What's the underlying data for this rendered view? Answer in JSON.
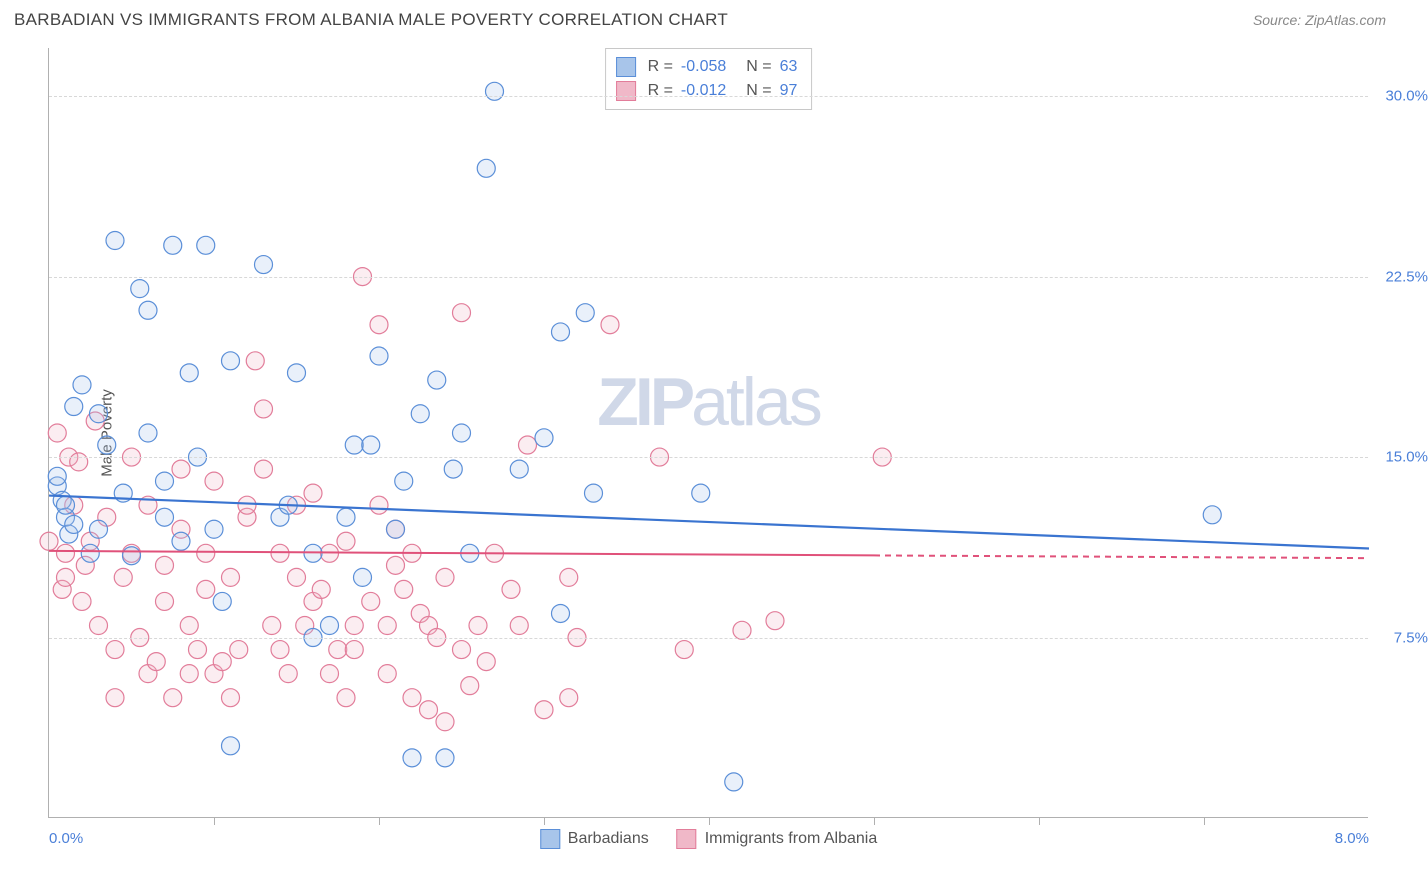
{
  "header": {
    "title": "BARBADIAN VS IMMIGRANTS FROM ALBANIA MALE POVERTY CORRELATION CHART",
    "source": "Source: ZipAtlas.com"
  },
  "watermark": {
    "zip": "ZIP",
    "atlas": "atlas"
  },
  "chart": {
    "type": "scatter",
    "ylabel": "Male Poverty",
    "xlim": [
      0,
      8.0
    ],
    "ylim": [
      0,
      32
    ],
    "yticks": [
      {
        "v": 7.5,
        "label": "7.5%"
      },
      {
        "v": 15.0,
        "label": "15.0%"
      },
      {
        "v": 22.5,
        "label": "22.5%"
      },
      {
        "v": 30.0,
        "label": "30.0%"
      }
    ],
    "xticks_minor": [
      1.0,
      2.0,
      3.0,
      4.0,
      5.0,
      6.0,
      7.0
    ],
    "xtick_labels": [
      {
        "v": 0.0,
        "label": "0.0%"
      },
      {
        "v": 8.0,
        "label": "8.0%"
      }
    ],
    "background_color": "#ffffff",
    "grid_color": "#d8d8d8",
    "axis_color": "#b0b0b0",
    "tick_label_color": "#4a7fd8",
    "marker_radius": 9,
    "marker_stroke_width": 1.2,
    "marker_fill_opacity": 0.25,
    "series": [
      {
        "name": "Barbadians",
        "color_stroke": "#5b8fd8",
        "color_fill": "#a8c5ea",
        "R": "-0.058",
        "N": "63",
        "regression": {
          "x1": 0,
          "y1": 13.4,
          "x2": 8.0,
          "y2": 11.2,
          "color": "#3a74d0",
          "width": 2.2,
          "dash_after_x": null
        },
        "points": [
          [
            0.05,
            13.8
          ],
          [
            0.05,
            14.2
          ],
          [
            0.08,
            13.2
          ],
          [
            0.1,
            12.5
          ],
          [
            0.1,
            13.0
          ],
          [
            0.12,
            11.8
          ],
          [
            0.15,
            17.1
          ],
          [
            0.15,
            12.2
          ],
          [
            0.2,
            18.0
          ],
          [
            0.25,
            11.0
          ],
          [
            0.3,
            16.8
          ],
          [
            0.3,
            12.0
          ],
          [
            0.35,
            15.5
          ],
          [
            0.4,
            24.0
          ],
          [
            0.45,
            13.5
          ],
          [
            0.5,
            10.9
          ],
          [
            0.55,
            22.0
          ],
          [
            0.6,
            21.1
          ],
          [
            0.6,
            16.0
          ],
          [
            0.7,
            14.0
          ],
          [
            0.7,
            12.5
          ],
          [
            0.75,
            23.8
          ],
          [
            0.8,
            11.5
          ],
          [
            0.85,
            18.5
          ],
          [
            0.9,
            15.0
          ],
          [
            0.95,
            23.8
          ],
          [
            1.0,
            12.0
          ],
          [
            1.05,
            9.0
          ],
          [
            1.1,
            19.0
          ],
          [
            1.1,
            3.0
          ],
          [
            1.3,
            23.0
          ],
          [
            1.4,
            12.5
          ],
          [
            1.45,
            13.0
          ],
          [
            1.5,
            18.5
          ],
          [
            1.6,
            11.0
          ],
          [
            1.6,
            7.5
          ],
          [
            1.7,
            8.0
          ],
          [
            1.8,
            12.5
          ],
          [
            1.85,
            15.5
          ],
          [
            1.9,
            10.0
          ],
          [
            1.95,
            15.5
          ],
          [
            2.0,
            19.2
          ],
          [
            2.1,
            12.0
          ],
          [
            2.15,
            14.0
          ],
          [
            2.2,
            2.5
          ],
          [
            2.25,
            16.8
          ],
          [
            2.35,
            18.2
          ],
          [
            2.4,
            2.5
          ],
          [
            2.45,
            14.5
          ],
          [
            2.5,
            16.0
          ],
          [
            2.55,
            11.0
          ],
          [
            2.65,
            27.0
          ],
          [
            2.7,
            30.2
          ],
          [
            2.85,
            14.5
          ],
          [
            3.0,
            15.8
          ],
          [
            3.1,
            8.5
          ],
          [
            3.1,
            20.2
          ],
          [
            3.25,
            21.0
          ],
          [
            3.3,
            13.5
          ],
          [
            3.95,
            13.5
          ],
          [
            4.15,
            1.5
          ],
          [
            7.05,
            12.6
          ]
        ]
      },
      {
        "name": "Immigrants from Albania",
        "color_stroke": "#e27d9a",
        "color_fill": "#f0b8c8",
        "R": "-0.012",
        "N": "97",
        "regression": {
          "x1": 0,
          "y1": 11.1,
          "x2": 8.0,
          "y2": 10.8,
          "color": "#e0517a",
          "width": 2,
          "dash_after_x": 5.0
        },
        "points": [
          [
            0.0,
            11.5
          ],
          [
            0.05,
            16.0
          ],
          [
            0.08,
            9.5
          ],
          [
            0.1,
            11.0
          ],
          [
            0.1,
            10.0
          ],
          [
            0.12,
            15.0
          ],
          [
            0.15,
            13.0
          ],
          [
            0.18,
            14.8
          ],
          [
            0.2,
            9.0
          ],
          [
            0.22,
            10.5
          ],
          [
            0.25,
            11.5
          ],
          [
            0.28,
            16.5
          ],
          [
            0.3,
            8.0
          ],
          [
            0.35,
            12.5
          ],
          [
            0.4,
            7.0
          ],
          [
            0.4,
            5.0
          ],
          [
            0.45,
            10.0
          ],
          [
            0.5,
            11.0
          ],
          [
            0.5,
            15.0
          ],
          [
            0.55,
            7.5
          ],
          [
            0.6,
            13.0
          ],
          [
            0.6,
            6.0
          ],
          [
            0.65,
            6.5
          ],
          [
            0.7,
            9.0
          ],
          [
            0.7,
            10.5
          ],
          [
            0.75,
            5.0
          ],
          [
            0.8,
            12.0
          ],
          [
            0.8,
            14.5
          ],
          [
            0.85,
            8.0
          ],
          [
            0.85,
            6.0
          ],
          [
            0.9,
            7.0
          ],
          [
            0.95,
            11.0
          ],
          [
            0.95,
            9.5
          ],
          [
            1.0,
            6.0
          ],
          [
            1.0,
            14.0
          ],
          [
            1.05,
            6.5
          ],
          [
            1.1,
            10.0
          ],
          [
            1.1,
            5.0
          ],
          [
            1.15,
            7.0
          ],
          [
            1.2,
            12.5
          ],
          [
            1.2,
            13.0
          ],
          [
            1.25,
            19.0
          ],
          [
            1.3,
            17.0
          ],
          [
            1.3,
            14.5
          ],
          [
            1.35,
            8.0
          ],
          [
            1.4,
            11.0
          ],
          [
            1.4,
            7.0
          ],
          [
            1.45,
            6.0
          ],
          [
            1.5,
            13.0
          ],
          [
            1.5,
            10.0
          ],
          [
            1.55,
            8.0
          ],
          [
            1.6,
            9.0
          ],
          [
            1.6,
            13.5
          ],
          [
            1.65,
            9.5
          ],
          [
            1.7,
            11.0
          ],
          [
            1.7,
            6.0
          ],
          [
            1.75,
            7.0
          ],
          [
            1.8,
            5.0
          ],
          [
            1.8,
            11.5
          ],
          [
            1.85,
            8.0
          ],
          [
            1.85,
            7.0
          ],
          [
            1.9,
            22.5
          ],
          [
            1.95,
            9.0
          ],
          [
            2.0,
            20.5
          ],
          [
            2.0,
            13.0
          ],
          [
            2.05,
            8.0
          ],
          [
            2.05,
            6.0
          ],
          [
            2.1,
            10.5
          ],
          [
            2.1,
            12.0
          ],
          [
            2.15,
            9.5
          ],
          [
            2.2,
            5.0
          ],
          [
            2.2,
            11.0
          ],
          [
            2.25,
            8.5
          ],
          [
            2.3,
            4.5
          ],
          [
            2.3,
            8.0
          ],
          [
            2.35,
            7.5
          ],
          [
            2.4,
            10.0
          ],
          [
            2.4,
            4.0
          ],
          [
            2.5,
            21.0
          ],
          [
            2.5,
            7.0
          ],
          [
            2.55,
            5.5
          ],
          [
            2.6,
            8.0
          ],
          [
            2.65,
            6.5
          ],
          [
            2.7,
            11.0
          ],
          [
            2.8,
            9.5
          ],
          [
            2.85,
            8.0
          ],
          [
            2.9,
            15.5
          ],
          [
            3.0,
            4.5
          ],
          [
            3.15,
            10.0
          ],
          [
            3.15,
            5.0
          ],
          [
            3.2,
            7.5
          ],
          [
            3.4,
            20.5
          ],
          [
            3.7,
            15.0
          ],
          [
            3.85,
            7.0
          ],
          [
            4.2,
            7.8
          ],
          [
            4.4,
            8.2
          ],
          [
            5.05,
            15.0
          ]
        ]
      }
    ],
    "stats_box": {
      "r_label": "R =",
      "n_label": "N ="
    },
    "legend_labels": [
      "Barbadians",
      "Immigrants from Albania"
    ]
  }
}
